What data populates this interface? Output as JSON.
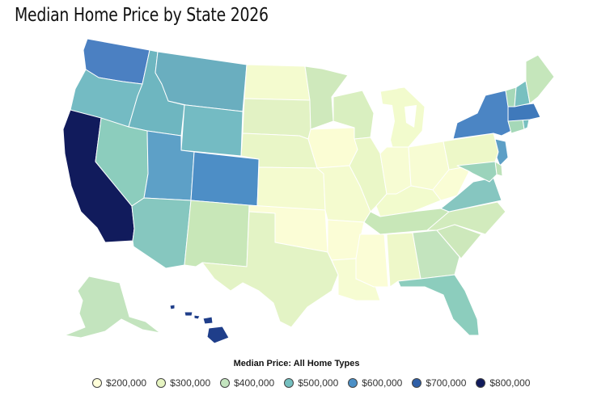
{
  "title": "Median Home Price by State 2026",
  "legend": {
    "title": "Median Price: All Home Types",
    "items": [
      {
        "label": "$200,000",
        "color": "#ffffd9"
      },
      {
        "label": "$300,000",
        "color": "#e6f4c1"
      },
      {
        "label": "$400,000",
        "color": "#c3e4be"
      },
      {
        "label": "$500,000",
        "color": "#74bfbf"
      },
      {
        "label": "$600,000",
        "color": "#4b8fc6"
      },
      {
        "label": "$700,000",
        "color": "#2f5fa7"
      },
      {
        "label": "$800,000",
        "color": "#111b5c"
      }
    ]
  },
  "states": [
    {
      "name": "WA",
      "color": "#4b80c2"
    },
    {
      "name": "OR",
      "color": "#74bbc3"
    },
    {
      "name": "CA",
      "color": "#111b5c"
    },
    {
      "name": "ID",
      "color": "#6eb6c0"
    },
    {
      "name": "NV",
      "color": "#8ccdbd"
    },
    {
      "name": "MT",
      "color": "#6aaebf"
    },
    {
      "name": "WY",
      "color": "#74bbc3"
    },
    {
      "name": "UT",
      "color": "#5da0c7"
    },
    {
      "name": "AZ",
      "color": "#86c7bf"
    },
    {
      "name": "CO",
      "color": "#4d8ec6"
    },
    {
      "name": "NM",
      "color": "#c8e7b8"
    },
    {
      "name": "ND",
      "color": "#f4fbcf"
    },
    {
      "name": "SD",
      "color": "#e2f2c4"
    },
    {
      "name": "NE",
      "color": "#e9f6c7"
    },
    {
      "name": "KS",
      "color": "#f4fbcf"
    },
    {
      "name": "OK",
      "color": "#fbfdd6"
    },
    {
      "name": "TX",
      "color": "#e3f3c5"
    },
    {
      "name": "MN",
      "color": "#cfe9bc"
    },
    {
      "name": "IA",
      "color": "#fbfdd4"
    },
    {
      "name": "MO",
      "color": "#f4fbcf"
    },
    {
      "name": "AR",
      "color": "#fbfdd6"
    },
    {
      "name": "LA",
      "color": "#f6fcd2"
    },
    {
      "name": "WI",
      "color": "#d9efc0"
    },
    {
      "name": "IL",
      "color": "#eaf7c7"
    },
    {
      "name": "MI",
      "color": "#f2fbcd"
    },
    {
      "name": "IN",
      "color": "#f7fcd3"
    },
    {
      "name": "OH",
      "color": "#f7fcd3"
    },
    {
      "name": "KY",
      "color": "#f2fbcd"
    },
    {
      "name": "TN",
      "color": "#c8e7b8"
    },
    {
      "name": "MS",
      "color": "#fbfdd6"
    },
    {
      "name": "AL",
      "color": "#eef8c9"
    },
    {
      "name": "GA",
      "color": "#c3e4be"
    },
    {
      "name": "FL",
      "color": "#8ccdbd"
    },
    {
      "name": "SC",
      "color": "#cde8bb"
    },
    {
      "name": "NC",
      "color": "#d2ebbd"
    },
    {
      "name": "VA",
      "color": "#86c6c0"
    },
    {
      "name": "WV",
      "color": "#fafdd5"
    },
    {
      "name": "PA",
      "color": "#edf8c8"
    },
    {
      "name": "NY",
      "color": "#4b85c4"
    },
    {
      "name": "VT",
      "color": "#a5d8b8"
    },
    {
      "name": "NH",
      "color": "#78c0c0"
    },
    {
      "name": "ME",
      "color": "#c5e6bb"
    },
    {
      "name": "MA",
      "color": "#3f79bb"
    },
    {
      "name": "CT",
      "color": "#a5d8b8"
    },
    {
      "name": "NJ",
      "color": "#5d9fc6"
    },
    {
      "name": "DE",
      "color": "#bde2b9"
    },
    {
      "name": "MD",
      "color": "#9bd3bb"
    },
    {
      "name": "RI",
      "color": "#78c0c0"
    },
    {
      "name": "AK",
      "color": "#c3e4be"
    },
    {
      "name": "HI",
      "color": "#1f3e8a"
    }
  ]
}
